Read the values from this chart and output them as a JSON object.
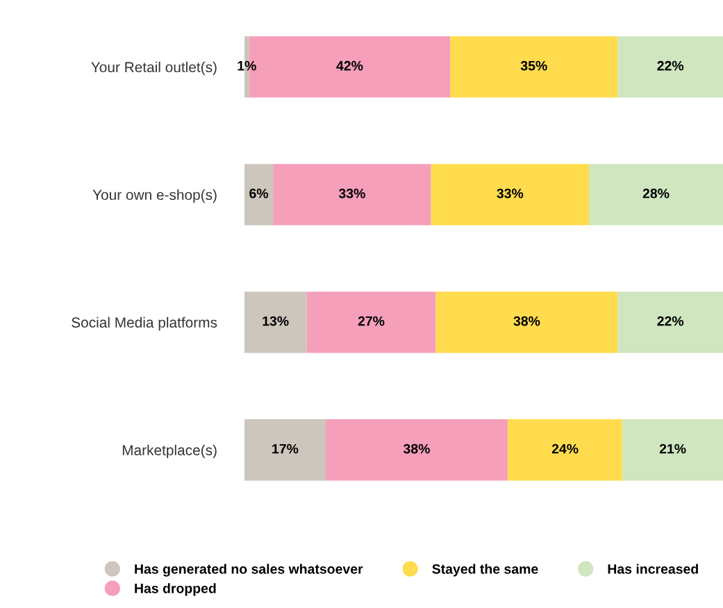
{
  "chart_data": {
    "type": "bar",
    "orientation": "horizontal",
    "stacked": true,
    "legend": "bottom",
    "grid": false,
    "tick_labels": "y",
    "categories": [
      "Your Retail outlet(s)",
      "Your own e-shop(s)",
      "Social Media platforms",
      "Marketplace(s)"
    ],
    "series": [
      {
        "name": "Has generated no sales whatsoever",
        "color": "#ccc6bc",
        "values": [
          1,
          6,
          13,
          17
        ],
        "value_labels": [
          "1%",
          "6%",
          "13%",
          "17%"
        ]
      },
      {
        "name": "Has dropped",
        "color": "#f59fba",
        "values": [
          42,
          33,
          27,
          38
        ],
        "value_labels": [
          "42%",
          "33%",
          "27%",
          "38%"
        ]
      },
      {
        "name": "Stayed the same",
        "color": "#fedc4e",
        "values": [
          35,
          33,
          38,
          24
        ],
        "value_labels": [
          "35%",
          "33%",
          "38%",
          "24%"
        ]
      },
      {
        "name": "Has increased",
        "color": "#cfe6c0",
        "values": [
          22,
          28,
          22,
          21
        ],
        "value_labels": [
          "22%",
          "28%",
          "22%",
          "21%"
        ]
      }
    ]
  }
}
